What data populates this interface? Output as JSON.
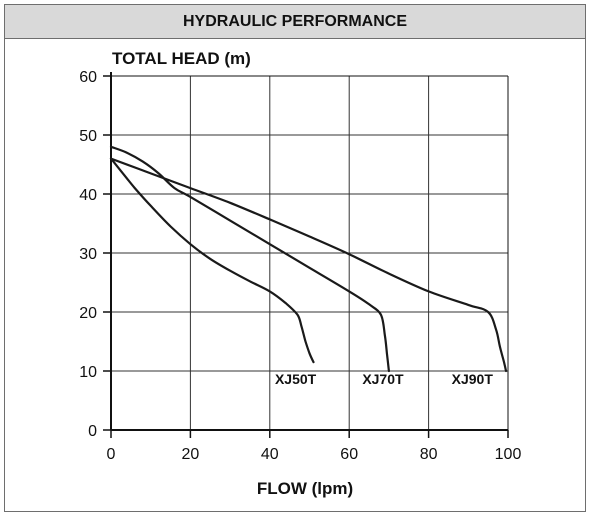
{
  "header": {
    "title": "HYDRAULIC PERFORMANCE"
  },
  "chart_data": {
    "type": "line",
    "title": "HYDRAULIC PERFORMANCE",
    "xlabel": "FLOW (lpm)",
    "ylabel": "TOTAL HEAD (m)",
    "xlim": [
      0,
      100
    ],
    "ylim": [
      0,
      60
    ],
    "xticks": [
      0,
      20,
      40,
      60,
      80,
      100
    ],
    "yticks": [
      0,
      10,
      20,
      30,
      40,
      50,
      60
    ],
    "grid": true,
    "colors": {
      "line": "#1a1a1a",
      "grid": "#333333",
      "header_bg": "#d9d9d9",
      "border": "#6e6e6e"
    },
    "series": [
      {
        "name": "XJ50T",
        "x": [
          0,
          3,
          6,
          10,
          15,
          20,
          25,
          30,
          35,
          40,
          44,
          47,
          48,
          49,
          50,
          51
        ],
        "y": [
          46,
          43.5,
          41,
          38,
          34.5,
          31.5,
          29,
          27,
          25.2,
          23.5,
          21.5,
          19.5,
          17.5,
          15,
          13,
          11.5
        ]
      },
      {
        "name": "XJ70T",
        "x": [
          0,
          4,
          8,
          12,
          16,
          20,
          30,
          40,
          50,
          60,
          65,
          68,
          69,
          69.5,
          70
        ],
        "y": [
          48,
          47,
          45.5,
          43.5,
          41,
          39.5,
          35.5,
          31.5,
          27.5,
          23.5,
          21.3,
          19.5,
          16,
          13,
          10
        ]
      },
      {
        "name": "XJ90T",
        "x": [
          0,
          10,
          20,
          30,
          40,
          50,
          60,
          70,
          80,
          90,
          95,
          97,
          98,
          99,
          99.5
        ],
        "y": [
          46,
          43.5,
          41,
          38.5,
          35.7,
          32.8,
          29.8,
          26.5,
          23.5,
          21.2,
          20,
          17,
          14,
          11.5,
          10
        ]
      }
    ],
    "labels": [
      {
        "series": "XJ50T",
        "text": "XJ50T",
        "x": 46.5,
        "y": 7.8
      },
      {
        "series": "XJ70T",
        "text": "XJ70T",
        "x": 68.5,
        "y": 7.8
      },
      {
        "series": "XJ90T",
        "text": "XJ90T",
        "x": 91,
        "y": 7.8
      }
    ]
  }
}
